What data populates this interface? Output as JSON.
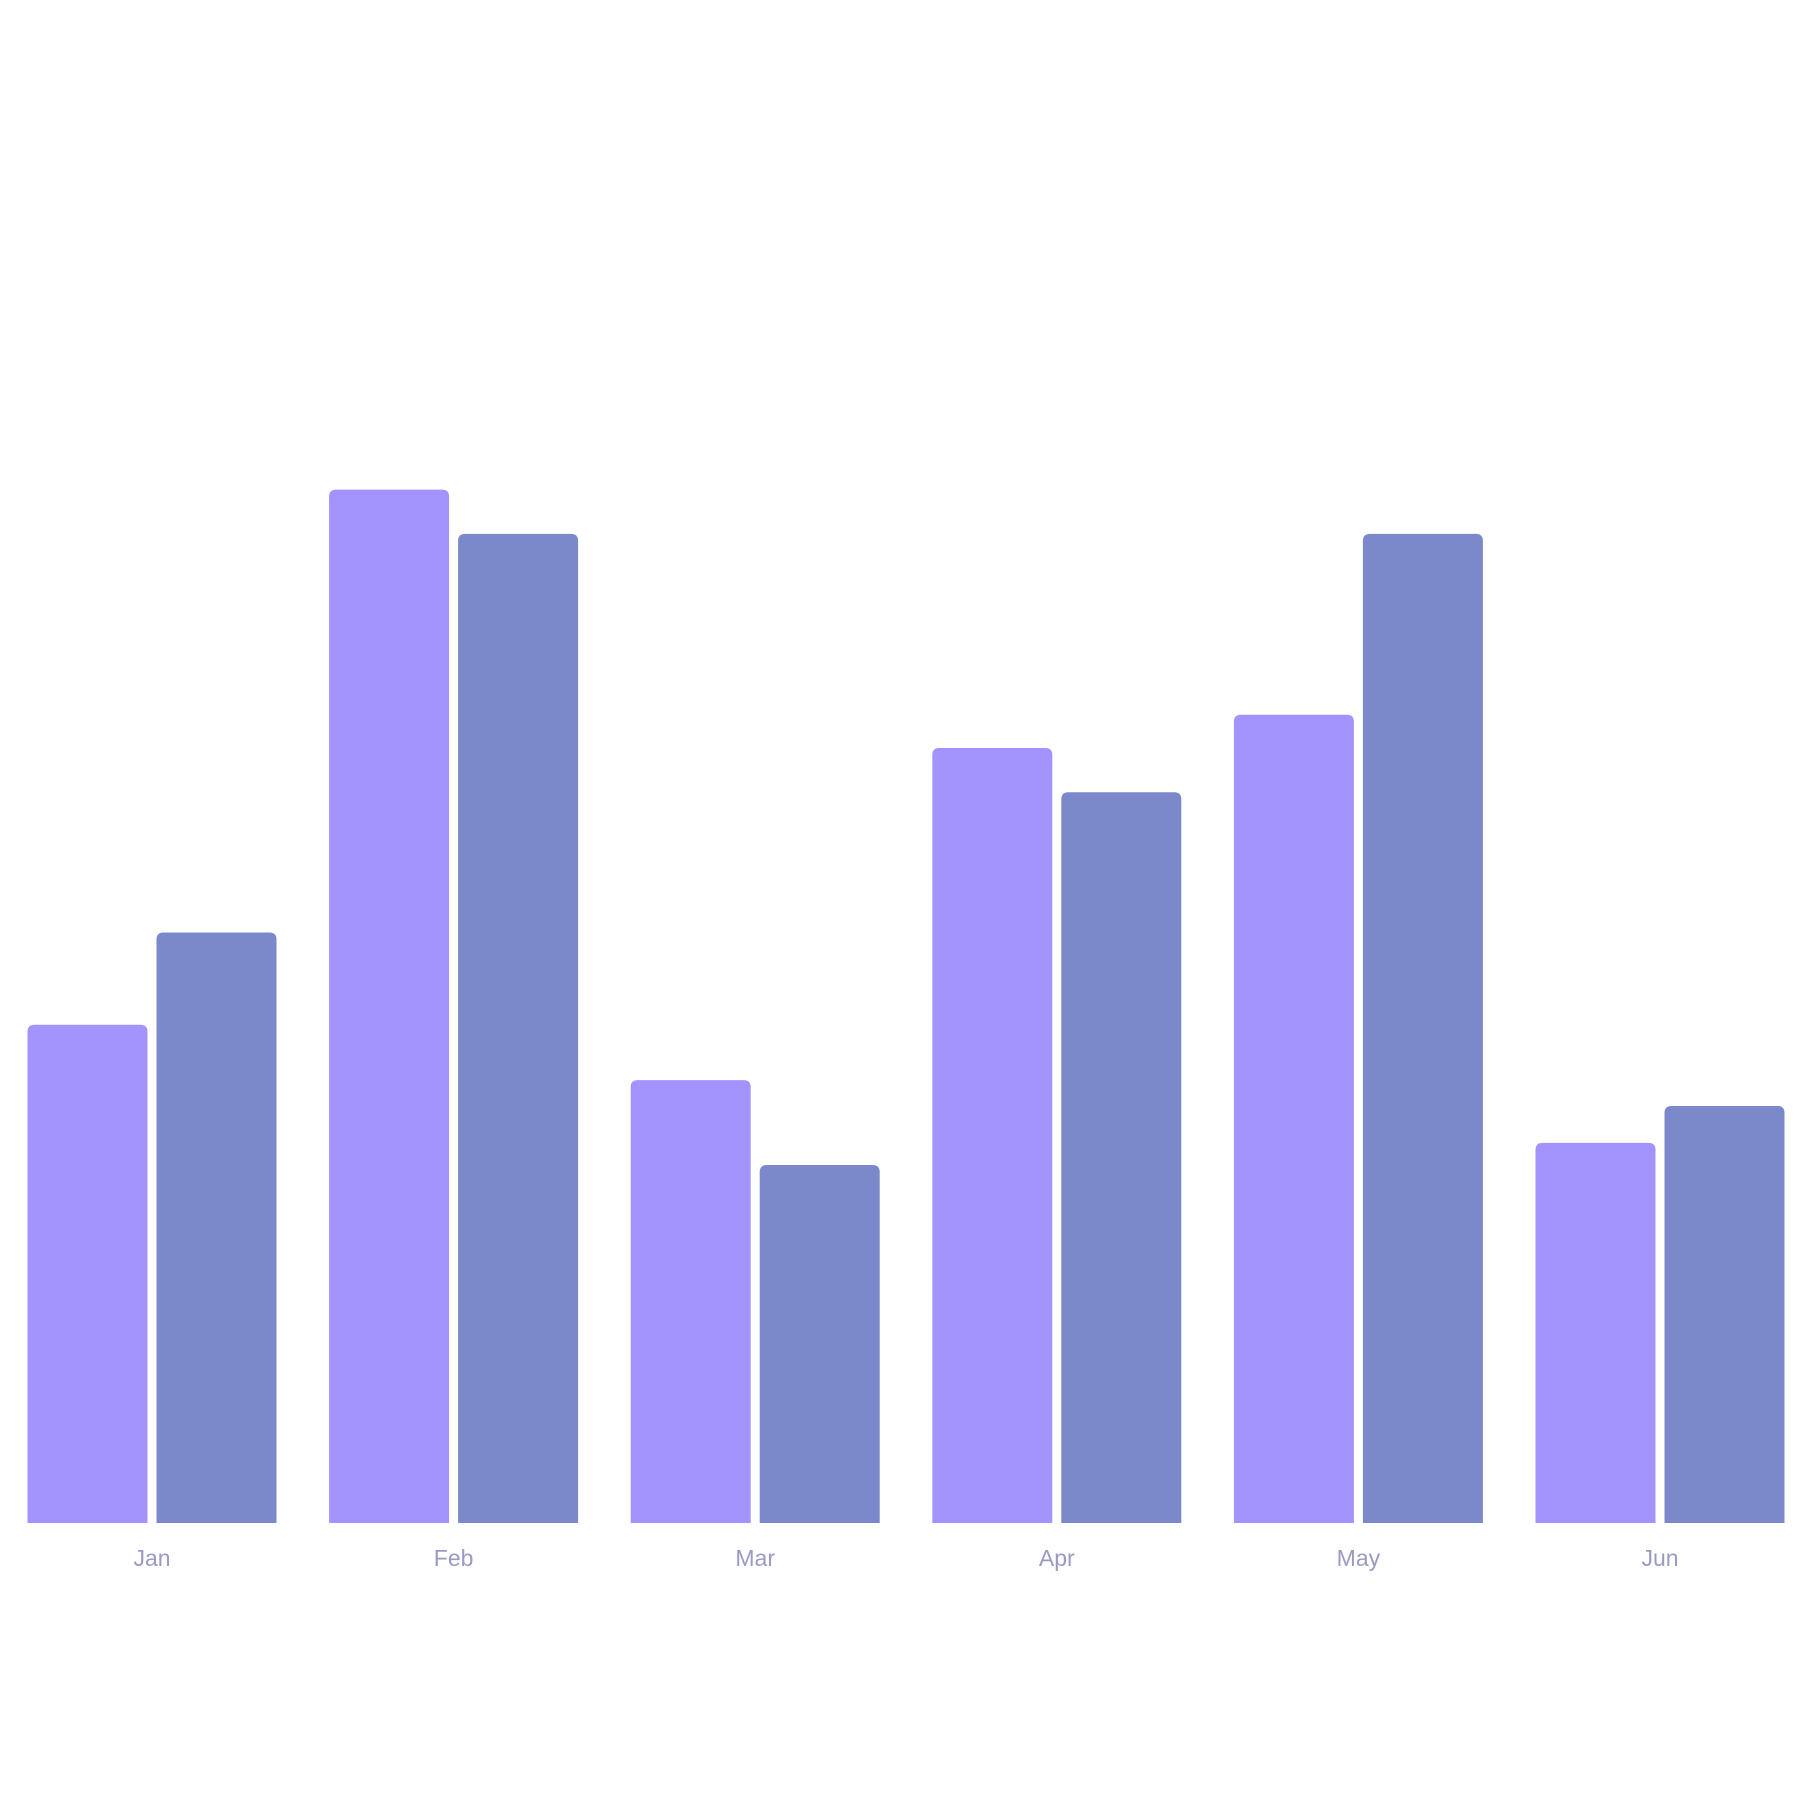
{
  "chart_data": {
    "type": "bar",
    "categories": [
      "Jan",
      "Feb",
      "Mar",
      "Apr",
      "May",
      "Jun"
    ],
    "series": [
      {
        "color": "#a393fc",
        "values": [
          135,
          280,
          120,
          210,
          219,
          103
        ]
      },
      {
        "color": "#7b89cb",
        "values": [
          160,
          268,
          97,
          198,
          268,
          113
        ]
      }
    ],
    "ylim": [
      0,
      320
    ]
  }
}
